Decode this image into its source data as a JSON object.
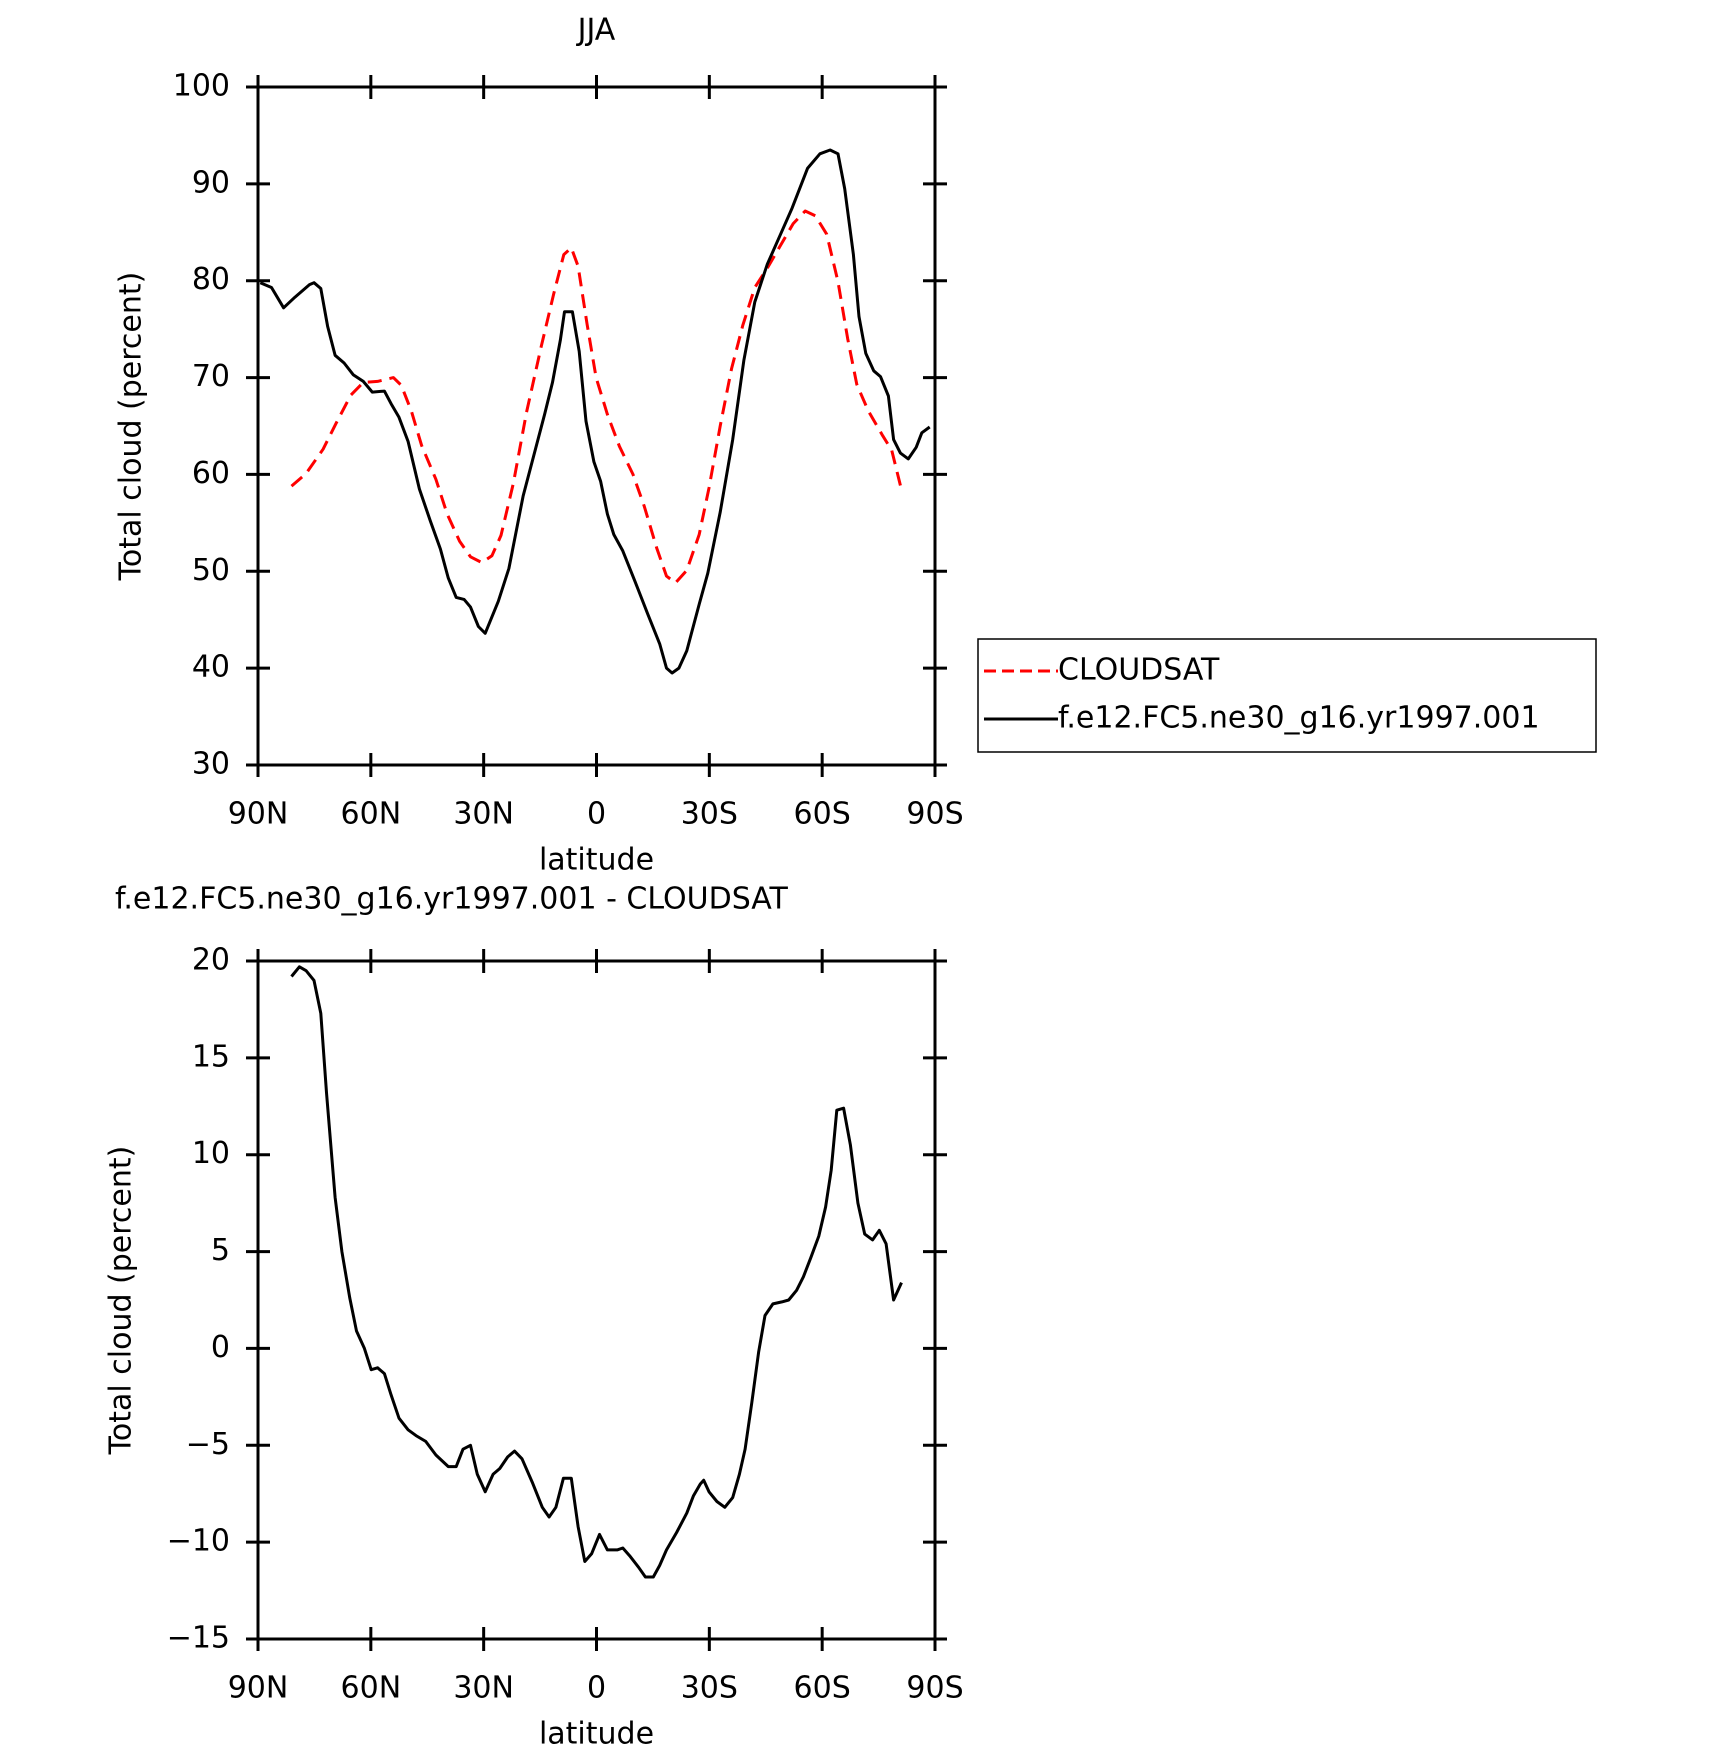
{
  "chart_data": [
    {
      "type": "line",
      "title": "JJA",
      "xlabel": "latitude",
      "ylabel": "Total cloud (percent)",
      "xlim": [
        90,
        -90
      ],
      "ylim": [
        30,
        100
      ],
      "xticks": [
        {
          "value": 90,
          "label": "90N"
        },
        {
          "value": 60,
          "label": "60N"
        },
        {
          "value": 30,
          "label": "30N"
        },
        0,
        {
          "value": -30,
          "label": "30S"
        },
        {
          "value": -60,
          "label": "60S"
        },
        {
          "value": -90,
          "label": "90S"
        }
      ],
      "yticks": [
        30,
        40,
        50,
        60,
        70,
        80,
        90,
        100
      ],
      "legend": "right",
      "series": [
        {
          "name": "CLOUDSAT",
          "color": "#ff0000",
          "dash": true,
          "x": [
            81.1,
            77.2,
            72.7,
            69.2,
            65.3,
            62.0,
            58.2,
            54.0,
            51.9,
            49.2,
            46.5,
            42.7,
            39.7,
            36.4,
            33.5,
            30.5,
            27.8,
            25.4,
            22.1,
            18.6,
            14.7,
            11.4,
            8.7,
            6.7,
            4.9,
            2.5,
            0.1,
            -2.9,
            -6.1,
            -9.7,
            -12.7,
            -16.0,
            -18.6,
            -21.0,
            -24.0,
            -27.3,
            -29.9,
            -32.9,
            -35.9,
            -38.9,
            -42.1,
            -45.4,
            -48.7,
            -52.3,
            -55.5,
            -58.2,
            -61.2,
            -64.2,
            -66.8,
            -69.2,
            -72.2,
            -76.1,
            -78.5,
            -81.1
          ],
          "values": [
            58.8,
            60.1,
            62.6,
            65.3,
            68.2,
            69.5,
            69.6,
            70.0,
            69.2,
            66.5,
            63.0,
            59.5,
            55.9,
            53.1,
            51.5,
            50.9,
            51.6,
            53.7,
            59.1,
            66.4,
            73.2,
            78.6,
            82.7,
            83.4,
            81.5,
            75.5,
            70.0,
            66.2,
            62.9,
            60.0,
            56.7,
            52.4,
            49.5,
            48.8,
            50.1,
            53.8,
            58.6,
            65.0,
            70.9,
            75.4,
            79.3,
            81.3,
            83.5,
            85.9,
            87.2,
            86.7,
            84.8,
            79.9,
            74.0,
            69.3,
            66.6,
            64.0,
            62.5,
            58.4
          ]
        },
        {
          "name": "f.e12.FC5.ne30_g16.yr1997.001",
          "color": "#000000",
          "dash": false,
          "x": [
            89.4,
            86.4,
            83.2,
            80.2,
            76.3,
            75.1,
            73.3,
            71.5,
            69.5,
            67.1,
            64.7,
            62.0,
            59.6,
            56.4,
            54.6,
            52.5,
            50.1,
            47.1,
            44.2,
            41.5,
            39.4,
            37.3,
            35.2,
            33.5,
            31.4,
            29.6,
            26.1,
            23.3,
            19.5,
            13.8,
            11.7,
            9.6,
            8.5,
            6.4,
            4.6,
            2.8,
            0.7,
            -1.1,
            -2.9,
            -4.6,
            -7.0,
            -10.3,
            -13.6,
            -16.8,
            -18.6,
            -20.1,
            -21.9,
            -24.0,
            -27.3,
            -29.6,
            -32.9,
            -36.2,
            -39.2,
            -42.1,
            -45.4,
            -48.7,
            -52.0,
            -56.1,
            -59.4,
            -62.1,
            -64.2,
            -66.0,
            -68.3,
            -69.8,
            -71.6,
            -73.7,
            -75.5,
            -77.6,
            -79.0,
            -80.8,
            -82.9,
            -85.0,
            -86.5,
            -88.6
          ],
          "values": [
            79.8,
            79.3,
            77.2,
            78.3,
            79.6,
            79.8,
            79.2,
            75.3,
            72.3,
            71.5,
            70.3,
            69.6,
            68.5,
            68.6,
            67.3,
            65.9,
            63.4,
            58.5,
            55.2,
            52.3,
            49.3,
            47.3,
            47.1,
            46.3,
            44.3,
            43.6,
            46.9,
            50.3,
            57.8,
            66.2,
            69.5,
            73.9,
            76.8,
            76.8,
            72.7,
            65.5,
            61.3,
            59.3,
            55.9,
            53.8,
            52.1,
            48.9,
            45.6,
            42.5,
            40.0,
            39.5,
            40.0,
            41.8,
            46.6,
            49.8,
            56.1,
            63.6,
            71.8,
            77.8,
            81.7,
            84.6,
            87.5,
            91.6,
            93.1,
            93.5,
            93.1,
            89.5,
            82.7,
            76.3,
            72.5,
            70.7,
            70.1,
            68.1,
            63.6,
            62.2,
            61.6,
            62.8,
            64.3,
            64.9
          ]
        }
      ]
    },
    {
      "type": "line",
      "title": "f.e12.FC5.ne30_g16.yr1997.001 - CLOUDSAT",
      "xlabel": "latitude",
      "ylabel": "Total cloud (percent)",
      "xlim": [
        90,
        -90
      ],
      "ylim": [
        -15,
        20
      ],
      "xticks": [
        {
          "value": 90,
          "label": "90N"
        },
        {
          "value": 60,
          "label": "60N"
        },
        {
          "value": 30,
          "label": "30N"
        },
        0,
        {
          "value": -30,
          "label": "30S"
        },
        {
          "value": -60,
          "label": "60S"
        },
        {
          "value": -90,
          "label": "90S"
        }
      ],
      "yticks": [
        {
          "value": -15,
          "label": "−15"
        },
        {
          "value": -10,
          "label": "−10"
        },
        {
          "value": -5,
          "label": "−5"
        },
        0,
        5,
        10,
        15,
        20
      ],
      "series": [
        {
          "color": "#000000",
          "dash": false,
          "x": [
            81.1,
            79.0,
            77.2,
            75.1,
            73.3,
            71.8,
            69.5,
            67.7,
            65.6,
            63.8,
            61.7,
            59.9,
            58.2,
            56.4,
            54.6,
            52.5,
            50.1,
            48.0,
            45.4,
            42.7,
            39.4,
            37.3,
            35.5,
            33.5,
            31.7,
            29.6,
            27.5,
            25.7,
            23.6,
            21.8,
            19.8,
            17.1,
            14.4,
            12.6,
            10.8,
            8.8,
            6.7,
            4.9,
            3.1,
            1.3,
            -0.8,
            -2.9,
            -5.5,
            -7.0,
            -8.8,
            -11.2,
            -13.0,
            -15.1,
            -16.8,
            -18.6,
            -21.3,
            -24.0,
            -25.8,
            -27.6,
            -28.5,
            -29.9,
            -32.0,
            -34.1,
            -36.2,
            -38.0,
            -39.5,
            -41.3,
            -43.1,
            -44.8,
            -46.9,
            -49.3,
            -51.1,
            -53.2,
            -55.0,
            -57.0,
            -59.1,
            -60.9,
            -62.4,
            -63.9,
            -65.7,
            -67.5,
            -69.5,
            -71.3,
            -73.4,
            -75.2,
            -77.0,
            -79.0,
            -81.1
          ],
          "values": [
            19.2,
            19.7,
            19.5,
            19.0,
            17.3,
            13.2,
            7.8,
            5.0,
            2.6,
            0.9,
            0.0,
            -1.1,
            -1.0,
            -1.3,
            -2.4,
            -3.6,
            -4.2,
            -4.5,
            -4.8,
            -5.5,
            -6.1,
            -6.1,
            -5.2,
            -5.0,
            -6.5,
            -7.4,
            -6.5,
            -6.2,
            -5.6,
            -5.3,
            -5.7,
            -6.9,
            -8.2,
            -8.7,
            -8.2,
            -6.7,
            -6.7,
            -9.2,
            -11.0,
            -10.6,
            -9.6,
            -10.4,
            -10.4,
            -10.3,
            -10.7,
            -11.3,
            -11.8,
            -11.8,
            -11.2,
            -10.4,
            -9.5,
            -8.5,
            -7.6,
            -7.0,
            -6.8,
            -7.4,
            -7.9,
            -8.2,
            -7.7,
            -6.5,
            -5.2,
            -2.8,
            -0.2,
            1.7,
            2.3,
            2.4,
            2.5,
            3.0,
            3.7,
            4.7,
            5.8,
            7.3,
            9.2,
            12.3,
            12.4,
            10.5,
            7.5,
            5.9,
            5.6,
            6.1,
            5.4,
            2.5,
            3.4
          ]
        }
      ]
    }
  ]
}
